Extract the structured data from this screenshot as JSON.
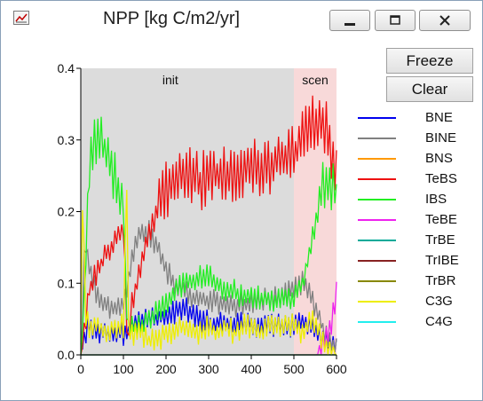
{
  "window": {
    "title": "NPP [kg C/m2/yr]"
  },
  "buttons": {
    "freeze": "Freeze",
    "clear": "Clear"
  },
  "icons": {
    "app": "chart-icon",
    "minimize": "minimize-icon",
    "maximize": "maximize-icon",
    "close": "close-icon"
  },
  "legend": [
    {
      "label": "BNE",
      "color": "#0000ee"
    },
    {
      "label": "BINE",
      "color": "#808080"
    },
    {
      "label": "BNS",
      "color": "#ff9900"
    },
    {
      "label": "TeBS",
      "color": "#ee1111"
    },
    {
      "label": "IBS",
      "color": "#22ee22"
    },
    {
      "label": "TeBE",
      "color": "#ee22ee"
    },
    {
      "label": "TrBE",
      "color": "#00aa99"
    },
    {
      "label": "TrIBE",
      "color": "#882222"
    },
    {
      "label": "TrBR",
      "color": "#888800"
    },
    {
      "label": "C3G",
      "color": "#eeee00"
    },
    {
      "label": "C4G",
      "color": "#22eeee"
    }
  ],
  "chart_data": {
    "type": "line",
    "xlim": [
      0,
      600
    ],
    "ylim": [
      0,
      0.4
    ],
    "xticks": [
      "0",
      "100",
      "200",
      "300",
      "400",
      "500",
      "600"
    ],
    "yticks": [
      "0.0",
      "0.1",
      "0.2",
      "0.3",
      "0.4"
    ],
    "regions": [
      {
        "label": "init",
        "x0": 0,
        "x1": 500,
        "color": "#dcdcdc"
      },
      {
        "label": "scen",
        "x0": 500,
        "x1": 600,
        "color": "#f8d9d9"
      }
    ],
    "series": [
      {
        "name": "BNE",
        "color": "#0000ee",
        "x": [
          0,
          20,
          40,
          60,
          80,
          100,
          110,
          120,
          140,
          160,
          180,
          200,
          220,
          240,
          260,
          280,
          300,
          320,
          340,
          360,
          380,
          400,
          420,
          440,
          460,
          480,
          500,
          520,
          540,
          560,
          580,
          600
        ],
        "y": [
          0.01,
          0.04,
          0.03,
          0.03,
          0.03,
          0.03,
          0.03,
          0.04,
          0.045,
          0.05,
          0.05,
          0.055,
          0.06,
          0.065,
          0.06,
          0.05,
          0.045,
          0.045,
          0.045,
          0.04,
          0.045,
          0.045,
          0.04,
          0.04,
          0.04,
          0.04,
          0.04,
          0.045,
          0.04,
          0.03,
          0.02,
          0.01
        ]
      },
      {
        "name": "BINE",
        "color": "#808080",
        "x": [
          0,
          10,
          20,
          40,
          60,
          80,
          100,
          110,
          120,
          140,
          160,
          180,
          200,
          220,
          240,
          260,
          280,
          300,
          320,
          340,
          360,
          380,
          400,
          420,
          440,
          460,
          480,
          500,
          520,
          540,
          560,
          580,
          600
        ],
        "y": [
          0.0,
          0.16,
          0.12,
          0.08,
          0.07,
          0.065,
          0.07,
          0.1,
          0.14,
          0.17,
          0.17,
          0.15,
          0.12,
          0.1,
          0.09,
          0.08,
          0.08,
          0.075,
          0.075,
          0.07,
          0.07,
          0.07,
          0.07,
          0.075,
          0.08,
          0.08,
          0.085,
          0.09,
          0.1,
          0.08,
          0.05,
          0.02,
          0.01
        ]
      },
      {
        "name": "BNS",
        "color": "#ff9900",
        "x": [
          0,
          100,
          200,
          300,
          400,
          500,
          600
        ],
        "y": [
          0,
          0,
          0,
          0,
          0,
          0,
          0
        ]
      },
      {
        "name": "TeBS",
        "color": "#ee1111",
        "x": [
          0,
          20,
          40,
          60,
          80,
          100,
          110,
          120,
          140,
          160,
          180,
          200,
          220,
          240,
          260,
          280,
          300,
          320,
          340,
          360,
          380,
          400,
          420,
          440,
          460,
          480,
          500,
          520,
          540,
          560,
          580,
          600
        ],
        "y": [
          0.0,
          0.09,
          0.12,
          0.14,
          0.16,
          0.18,
          0.01,
          0.07,
          0.12,
          0.17,
          0.2,
          0.23,
          0.24,
          0.25,
          0.25,
          0.24,
          0.25,
          0.25,
          0.25,
          0.25,
          0.26,
          0.27,
          0.26,
          0.26,
          0.27,
          0.27,
          0.28,
          0.3,
          0.32,
          0.33,
          0.31,
          0.25
        ]
      },
      {
        "name": "IBS",
        "color": "#22ee22",
        "x": [
          0,
          10,
          20,
          40,
          60,
          80,
          100,
          110,
          120,
          140,
          160,
          180,
          200,
          220,
          240,
          260,
          280,
          300,
          320,
          340,
          360,
          380,
          400,
          420,
          440,
          460,
          480,
          500,
          520,
          540,
          560,
          580,
          600
        ],
        "y": [
          0.0,
          0.1,
          0.27,
          0.31,
          0.28,
          0.25,
          0.2,
          0.03,
          0.04,
          0.04,
          0.05,
          0.06,
          0.07,
          0.09,
          0.1,
          0.1,
          0.11,
          0.11,
          0.1,
          0.09,
          0.09,
          0.08,
          0.08,
          0.08,
          0.08,
          0.075,
          0.08,
          0.08,
          0.1,
          0.15,
          0.22,
          0.25,
          0.22
        ]
      },
      {
        "name": "TeBE",
        "color": "#ee22ee",
        "x": [
          0,
          100,
          200,
          300,
          400,
          500,
          555,
          575,
          590,
          600
        ],
        "y": [
          0,
          0,
          0,
          0,
          0,
          0,
          0,
          0.02,
          0.05,
          0.09
        ]
      },
      {
        "name": "TrBE",
        "color": "#00aa99",
        "x": [
          0,
          100,
          200,
          300,
          400,
          500,
          600
        ],
        "y": [
          0,
          0,
          0,
          0,
          0,
          0,
          0
        ]
      },
      {
        "name": "TrIBE",
        "color": "#882222",
        "x": [
          0,
          100,
          200,
          300,
          400,
          500,
          600
        ],
        "y": [
          0,
          0,
          0,
          0,
          0,
          0,
          0
        ]
      },
      {
        "name": "TrBR",
        "color": "#888800",
        "x": [
          0,
          100,
          200,
          300,
          400,
          500,
          600
        ],
        "y": [
          0,
          0,
          0,
          0,
          0,
          0,
          0
        ]
      },
      {
        "name": "C3G",
        "color": "#eeee00",
        "x": [
          0,
          5,
          10,
          20,
          40,
          60,
          80,
          100,
          108,
          112,
          120,
          140,
          160,
          180,
          200,
          220,
          240,
          260,
          280,
          300,
          320,
          340,
          360,
          380,
          400,
          420,
          440,
          460,
          480,
          500,
          520,
          540,
          560,
          580,
          600
        ],
        "y": [
          0.03,
          0.28,
          0.05,
          0.04,
          0.04,
          0.03,
          0.04,
          0.04,
          0.25,
          0.03,
          0.03,
          0.03,
          0.02,
          0.02,
          0.03,
          0.03,
          0.04,
          0.03,
          0.03,
          0.04,
          0.03,
          0.04,
          0.03,
          0.04,
          0.04,
          0.03,
          0.04,
          0.04,
          0.04,
          0.04,
          0.03,
          0.05,
          0.03,
          0.01,
          0.0
        ]
      },
      {
        "name": "C4G",
        "color": "#22eeee",
        "x": [
          0,
          100,
          200,
          300,
          400,
          500,
          600
        ],
        "y": [
          0,
          0,
          0,
          0,
          0,
          0,
          0
        ]
      }
    ]
  }
}
